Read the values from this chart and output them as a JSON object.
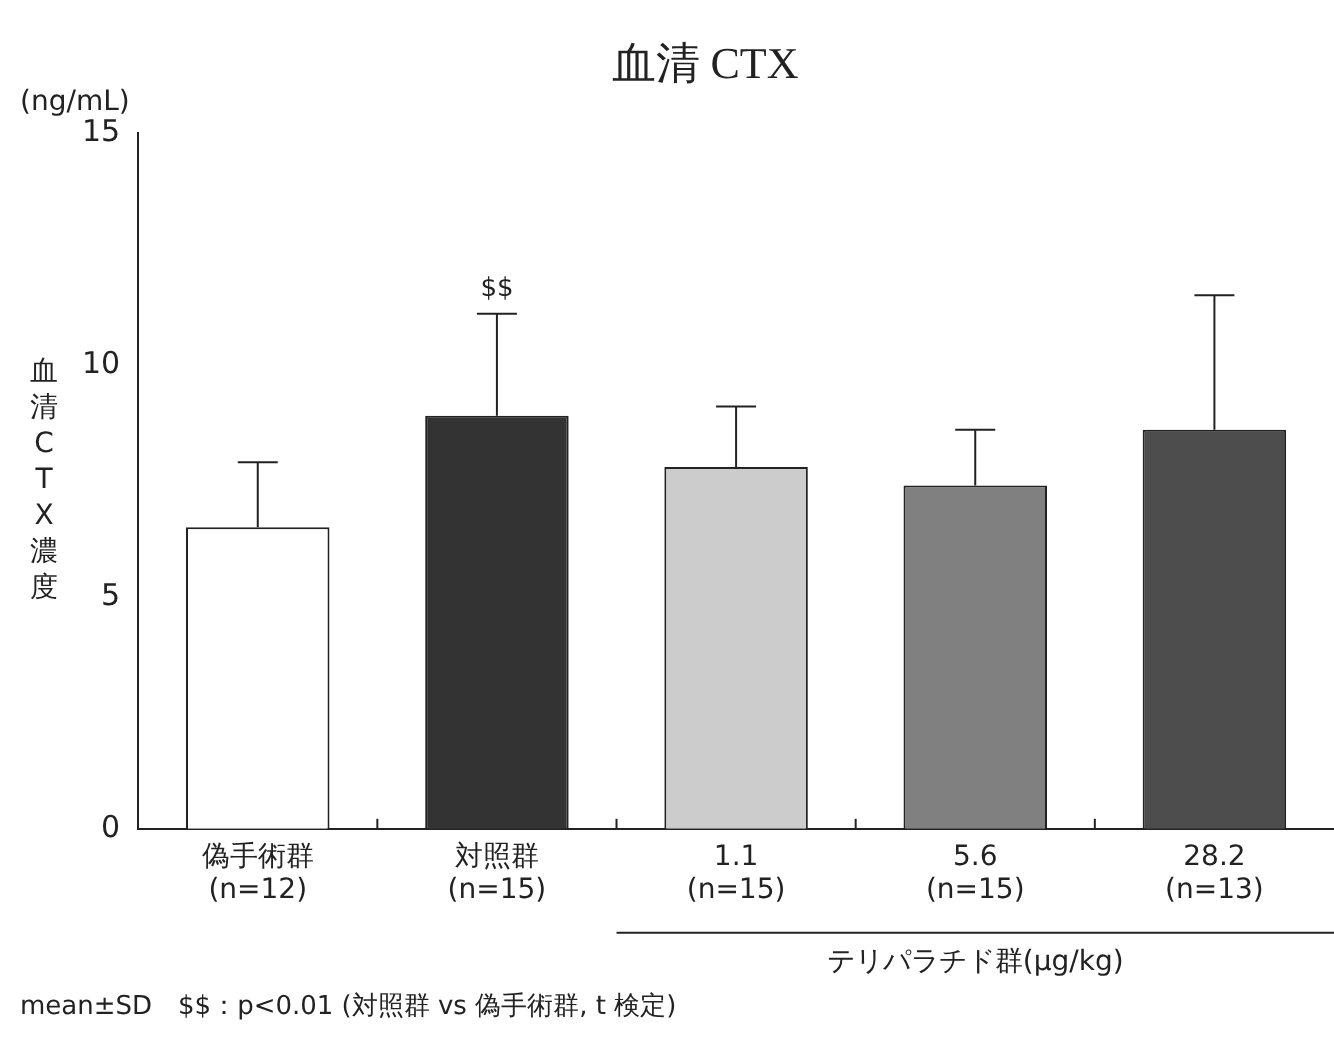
{
  "chart_data": {
    "type": "bar",
    "title": "血清 CTX",
    "ylabel": "血清CTX濃度",
    "categories": [
      "偽手術群\n(n=12)",
      "対照群\n(n=15)",
      "1.1\n(n=15)",
      "5.6\n(n=15)",
      "28.2\n(n=13)"
    ],
    "values": [
      6.5,
      8.9,
      7.8,
      7.4,
      8.6
    ],
    "colors": [
      "#ffffff",
      "#333333",
      "#cccccc",
      "#808080",
      "#4d4d4d"
    ],
    "errors": [
      [
        6.5,
        7.9
      ],
      [
        8.9,
        11.1
      ],
      [
        7.8,
        9.1
      ],
      [
        7.4,
        8.6
      ],
      [
        8.6,
        11.5
      ]
    ],
    "ylim": [
      0,
      15
    ],
    "yticks": [
      0,
      5,
      10,
      15
    ],
    "grid": false,
    "legend": false,
    "annotations": [
      "(ng/mL)",
      {
        "text": "$$",
        "x": "対照群\n(n=15)",
        "y": 11.1
      },
      "テリパラチド群(μg/kg)",
      "mean±SD　$$：p<0.01 (対照群 vs 偽手術群, t 検定)"
    ]
  }
}
